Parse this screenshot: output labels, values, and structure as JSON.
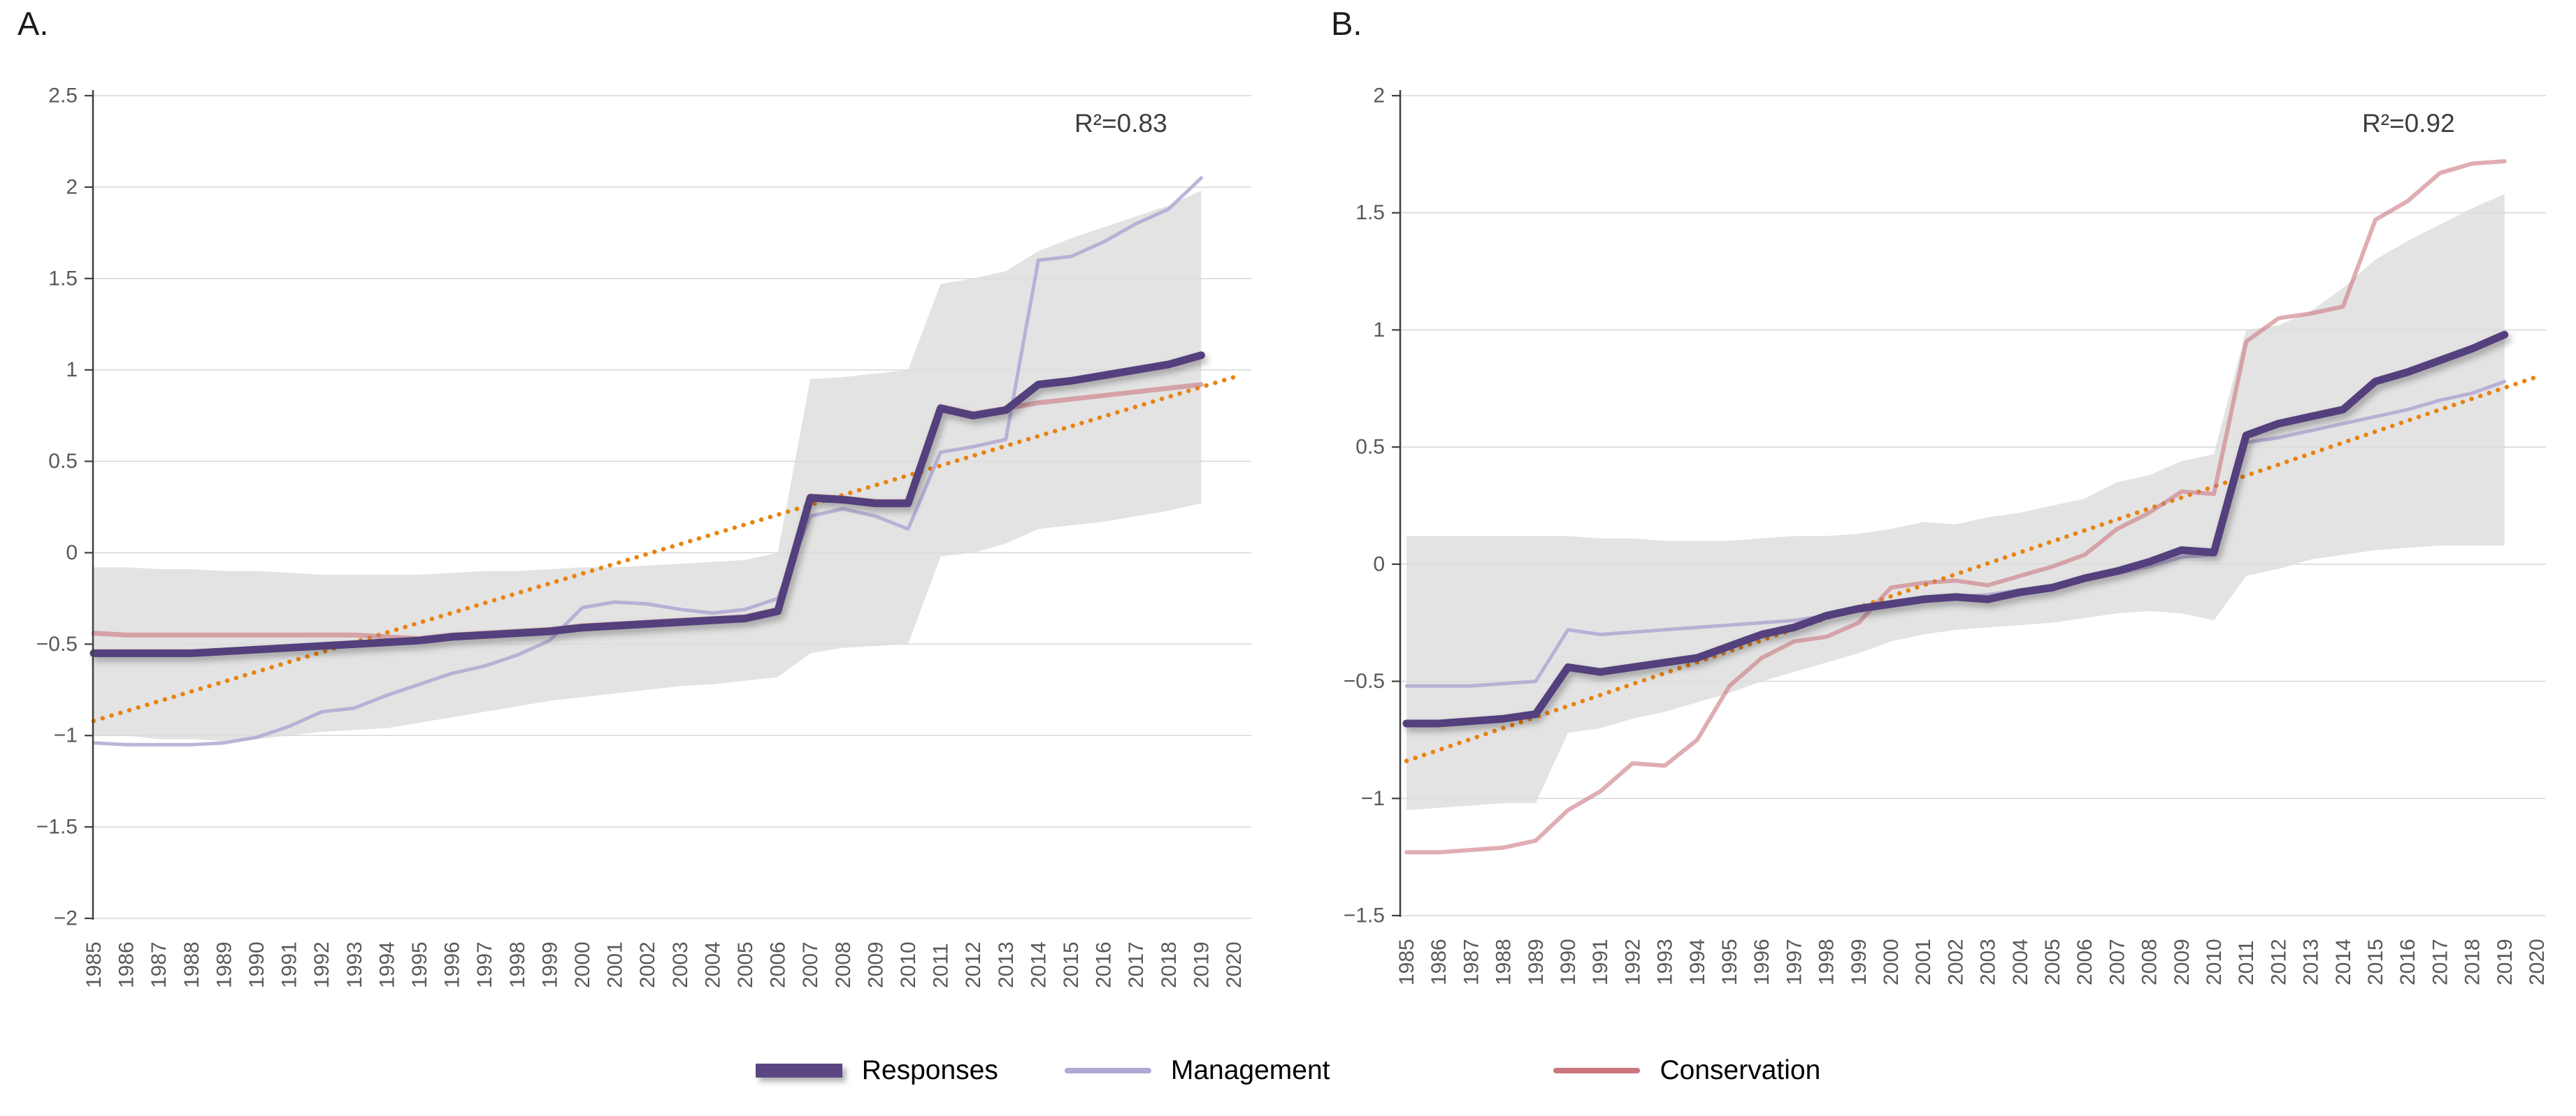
{
  "page": {
    "background": "#ffffff"
  },
  "legend": {
    "position": "bottom",
    "items": [
      {
        "label": "Responses",
        "color": "#5A4683",
        "swatch": "thick-bar"
      },
      {
        "label": "Management",
        "color": "#B2A7D2",
        "swatch": "thin-line"
      },
      {
        "label": "Conservation",
        "color": "#CA777E",
        "swatch": "thin-line"
      }
    ]
  },
  "chart_data": [
    {
      "type": "line",
      "panel_label": "A.",
      "r2": 0.83,
      "r2_label": "R²=0.83",
      "x_range": [
        1985,
        2020
      ],
      "x_tick_labels": [
        "1985",
        "1986",
        "1987",
        "1988",
        "1989",
        "1990",
        "1991",
        "1992",
        "1993",
        "1994",
        "1995",
        "1996",
        "1997",
        "1998",
        "1999",
        "2000",
        "2001",
        "2002",
        "2003",
        "2004",
        "2005",
        "2006",
        "2007",
        "2008",
        "2009",
        "2010",
        "2011",
        "2012",
        "2013",
        "2014",
        "2015",
        "2016",
        "2017",
        "2018",
        "2019",
        "2020"
      ],
      "ylim": [
        -2,
        2.5
      ],
      "y_tick_labels": [
        "2.5",
        "2",
        "1.5",
        "1",
        "0.5",
        "0",
        "−0.5",
        "−1",
        "−1.5",
        "−2"
      ],
      "grid": true,
      "years": [
        1985,
        1986,
        1987,
        1988,
        1989,
        1990,
        1991,
        1992,
        1993,
        1994,
        1995,
        1996,
        1997,
        1998,
        1999,
        2000,
        2001,
        2002,
        2003,
        2004,
        2005,
        2006,
        2007,
        2008,
        2009,
        2010,
        2011,
        2012,
        2013,
        2014,
        2015,
        2016,
        2017,
        2018,
        2019
      ],
      "band": {
        "name": "confidence-band",
        "color": "#DCDCDC",
        "opacity": 0.8,
        "upper": [
          -0.08,
          -0.08,
          -0.09,
          -0.09,
          -0.1,
          -0.1,
          -0.11,
          -0.12,
          -0.12,
          -0.12,
          -0.12,
          -0.11,
          -0.1,
          -0.1,
          -0.09,
          -0.08,
          -0.08,
          -0.07,
          -0.06,
          -0.05,
          -0.04,
          0.0,
          0.95,
          0.96,
          0.98,
          1.0,
          1.47,
          1.5,
          1.54,
          1.65,
          1.72,
          1.78,
          1.84,
          1.9,
          1.98
        ],
        "lower": [
          -1.0,
          -1.0,
          -1.02,
          -1.02,
          -1.03,
          -1.02,
          -1.0,
          -0.98,
          -0.97,
          -0.96,
          -0.93,
          -0.9,
          -0.87,
          -0.84,
          -0.81,
          -0.79,
          -0.77,
          -0.75,
          -0.73,
          -0.72,
          -0.7,
          -0.68,
          -0.55,
          -0.52,
          -0.51,
          -0.5,
          -0.02,
          0.0,
          0.05,
          0.13,
          0.15,
          0.17,
          0.2,
          0.23,
          0.27
        ]
      },
      "series": [
        {
          "name": "Responses",
          "color": "#53407B",
          "width": 11,
          "opacity": 1,
          "values": [
            -0.55,
            -0.55,
            -0.55,
            -0.55,
            -0.54,
            -0.53,
            -0.52,
            -0.51,
            -0.5,
            -0.49,
            -0.48,
            -0.46,
            -0.45,
            -0.44,
            -0.43,
            -0.41,
            -0.4,
            -0.39,
            -0.38,
            -0.37,
            -0.36,
            -0.32,
            0.3,
            0.29,
            0.27,
            0.27,
            0.79,
            0.75,
            0.78,
            0.92,
            0.94,
            0.97,
            1.0,
            1.03,
            1.08
          ]
        },
        {
          "name": "Management",
          "color": "#B2A7D2",
          "width": 5,
          "opacity": 0.85,
          "values": [
            -1.04,
            -1.05,
            -1.05,
            -1.05,
            -1.04,
            -1.01,
            -0.95,
            -0.87,
            -0.85,
            -0.78,
            -0.72,
            -0.66,
            -0.62,
            -0.56,
            -0.48,
            -0.3,
            -0.27,
            -0.28,
            -0.31,
            -0.33,
            -0.31,
            -0.25,
            0.2,
            0.24,
            0.2,
            0.13,
            0.55,
            0.58,
            0.62,
            1.6,
            1.62,
            1.7,
            1.8,
            1.88,
            2.05
          ]
        },
        {
          "name": "Conservation",
          "color": "#CA777E",
          "width": 7,
          "opacity": 0.6,
          "values": [
            -0.44,
            -0.45,
            -0.45,
            -0.45,
            -0.45,
            -0.45,
            -0.45,
            -0.45,
            -0.45,
            -0.46,
            -0.47,
            -0.45,
            -0.44,
            -0.43,
            -0.42,
            -0.4,
            -0.39,
            -0.38,
            -0.37,
            -0.36,
            -0.35,
            -0.31,
            0.31,
            0.3,
            0.28,
            0.28,
            0.8,
            0.76,
            0.79,
            0.82,
            0.84,
            0.86,
            0.88,
            0.9,
            0.92
          ]
        }
      ],
      "trend": {
        "name": "linear-trend",
        "color": "#E8830F",
        "style": "dotted",
        "x": [
          1985,
          2020
        ],
        "y": [
          -0.92,
          0.96
        ]
      }
    },
    {
      "type": "line",
      "panel_label": "B.",
      "r2": 0.92,
      "r2_label": "R²=0.92",
      "x_range": [
        1985,
        2020
      ],
      "x_tick_labels": [
        "1985",
        "1986",
        "1987",
        "1988",
        "1989",
        "1990",
        "1991",
        "1992",
        "1993",
        "1994",
        "1995",
        "1996",
        "1997",
        "1998",
        "1999",
        "2000",
        "2001",
        "2002",
        "2003",
        "2004",
        "2005",
        "2006",
        "2007",
        "2008",
        "2009",
        "2010",
        "2011",
        "2012",
        "2013",
        "2014",
        "2015",
        "2016",
        "2017",
        "2018",
        "2019",
        "2020"
      ],
      "ylim": [
        -1.5,
        2
      ],
      "y_tick_labels": [
        "2",
        "1.5",
        "1",
        "0.5",
        "0",
        "−0.5",
        "−1",
        "−1.5"
      ],
      "grid": true,
      "years": [
        1985,
        1986,
        1987,
        1988,
        1989,
        1990,
        1991,
        1992,
        1993,
        1994,
        1995,
        1996,
        1997,
        1998,
        1999,
        2000,
        2001,
        2002,
        2003,
        2004,
        2005,
        2006,
        2007,
        2008,
        2009,
        2010,
        2011,
        2012,
        2013,
        2014,
        2015,
        2016,
        2017,
        2018,
        2019
      ],
      "band": {
        "name": "confidence-band",
        "color": "#DCDCDC",
        "opacity": 0.8,
        "upper": [
          0.12,
          0.12,
          0.12,
          0.12,
          0.12,
          0.12,
          0.11,
          0.11,
          0.1,
          0.1,
          0.1,
          0.11,
          0.12,
          0.12,
          0.13,
          0.15,
          0.18,
          0.17,
          0.2,
          0.22,
          0.25,
          0.28,
          0.35,
          0.38,
          0.44,
          0.47,
          1.0,
          1.02,
          1.08,
          1.18,
          1.3,
          1.38,
          1.45,
          1.52,
          1.58
        ],
        "lower": [
          -1.05,
          -1.04,
          -1.03,
          -1.02,
          -1.02,
          -0.72,
          -0.7,
          -0.66,
          -0.63,
          -0.59,
          -0.55,
          -0.5,
          -0.46,
          -0.42,
          -0.38,
          -0.33,
          -0.3,
          -0.28,
          -0.27,
          -0.26,
          -0.25,
          -0.23,
          -0.21,
          -0.2,
          -0.21,
          -0.24,
          -0.05,
          -0.02,
          0.02,
          0.04,
          0.06,
          0.07,
          0.08,
          0.08,
          0.08
        ]
      },
      "series": [
        {
          "name": "Responses",
          "color": "#53407B",
          "width": 11,
          "opacity": 1,
          "values": [
            -0.68,
            -0.68,
            -0.67,
            -0.66,
            -0.64,
            -0.44,
            -0.46,
            -0.44,
            -0.42,
            -0.4,
            -0.35,
            -0.3,
            -0.27,
            -0.22,
            -0.19,
            -0.17,
            -0.15,
            -0.14,
            -0.15,
            -0.12,
            -0.1,
            -0.06,
            -0.03,
            0.01,
            0.06,
            0.05,
            0.55,
            0.6,
            0.63,
            0.66,
            0.78,
            0.82,
            0.87,
            0.92,
            0.98
          ]
        },
        {
          "name": "Management",
          "color": "#B2A7D2",
          "width": 5,
          "opacity": 0.85,
          "values": [
            -0.52,
            -0.52,
            -0.52,
            -0.51,
            -0.5,
            -0.28,
            -0.3,
            -0.29,
            -0.28,
            -0.27,
            -0.26,
            -0.25,
            -0.24,
            -0.22,
            -0.2,
            -0.18,
            -0.16,
            -0.14,
            -0.13,
            -0.11,
            -0.09,
            -0.06,
            -0.04,
            -0.01,
            0.03,
            0.04,
            0.52,
            0.54,
            0.57,
            0.6,
            0.63,
            0.66,
            0.7,
            0.73,
            0.78
          ]
        },
        {
          "name": "Conservation",
          "color": "#CA777E",
          "width": 6,
          "opacity": 0.6,
          "values": [
            -1.23,
            -1.23,
            -1.22,
            -1.21,
            -1.18,
            -1.05,
            -0.97,
            -0.85,
            -0.86,
            -0.75,
            -0.52,
            -0.4,
            -0.33,
            -0.31,
            -0.25,
            -0.1,
            -0.08,
            -0.07,
            -0.09,
            -0.05,
            -0.01,
            0.04,
            0.15,
            0.22,
            0.31,
            0.3,
            0.95,
            1.05,
            1.07,
            1.1,
            1.47,
            1.55,
            1.67,
            1.71,
            1.72
          ]
        }
      ],
      "trend": {
        "name": "linear-trend",
        "color": "#E8830F",
        "style": "dotted",
        "x": [
          1985,
          2020
        ],
        "y": [
          -0.84,
          0.8
        ]
      }
    }
  ]
}
